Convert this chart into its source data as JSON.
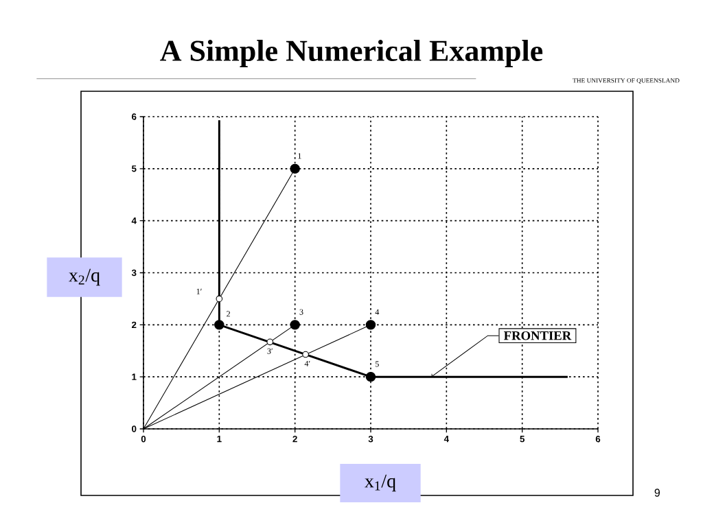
{
  "chart_data": {
    "type": "scatter",
    "title": "A Simple Numerical Example",
    "xlabel": "x$_{1}$/q",
    "ylabel": "x$_{2}$/q",
    "xlim": [
      0,
      6
    ],
    "ylim": [
      0,
      6
    ],
    "xticks": [
      0,
      1,
      2,
      3,
      4,
      5,
      6
    ],
    "yticks": [
      0,
      1,
      2,
      3,
      4,
      5,
      6
    ],
    "grid": true,
    "series": [
      {
        "type": "line",
        "color": "#000000",
        "x": [
          0,
          2
        ],
        "values": [
          0,
          5
        ]
      },
      {
        "type": "line",
        "color": "#000000",
        "x": [
          0,
          2
        ],
        "values": [
          0,
          2
        ]
      },
      {
        "type": "line",
        "color": "#000000",
        "x": [
          0,
          3
        ],
        "values": [
          0,
          2
        ]
      },
      {
        "type": "line",
        "color": "#000000",
        "x": [
          1,
          1,
          3,
          5.6
        ],
        "values": [
          5.93,
          2,
          1,
          1
        ]
      },
      {
        "type": "scatter",
        "color": "#000000",
        "marker": "circle",
        "x": [
          2,
          1,
          2,
          3,
          3
        ],
        "values": [
          5,
          2,
          2,
          2,
          1
        ]
      },
      {
        "type": "scatter",
        "color": "#ffffff",
        "marker": "circle",
        "x": [
          1,
          1.67,
          2.14
        ],
        "values": [
          2.5,
          1.67,
          1.43
        ]
      }
    ],
    "annotations": [
      {
        "text": "1",
        "x": 2,
        "y": 5
      },
      {
        "text": "1′",
        "x": 1,
        "y": 2.5
      },
      {
        "text": "2",
        "x": 1,
        "y": 2
      },
      {
        "text": "3",
        "x": 2,
        "y": 2
      },
      {
        "text": "4",
        "x": 3,
        "y": 2
      },
      {
        "text": "5",
        "x": 3,
        "y": 1
      },
      {
        "text": "3′",
        "x": 1.67,
        "y": 1.67
      },
      {
        "text": "4′",
        "x": 2.14,
        "y": 1.43
      },
      {
        "text": "FRONTIER",
        "x": 3.8,
        "y": 1
      },
      "THE UNIVERSITY OF QUEENSLAND",
      "9"
    ]
  }
}
